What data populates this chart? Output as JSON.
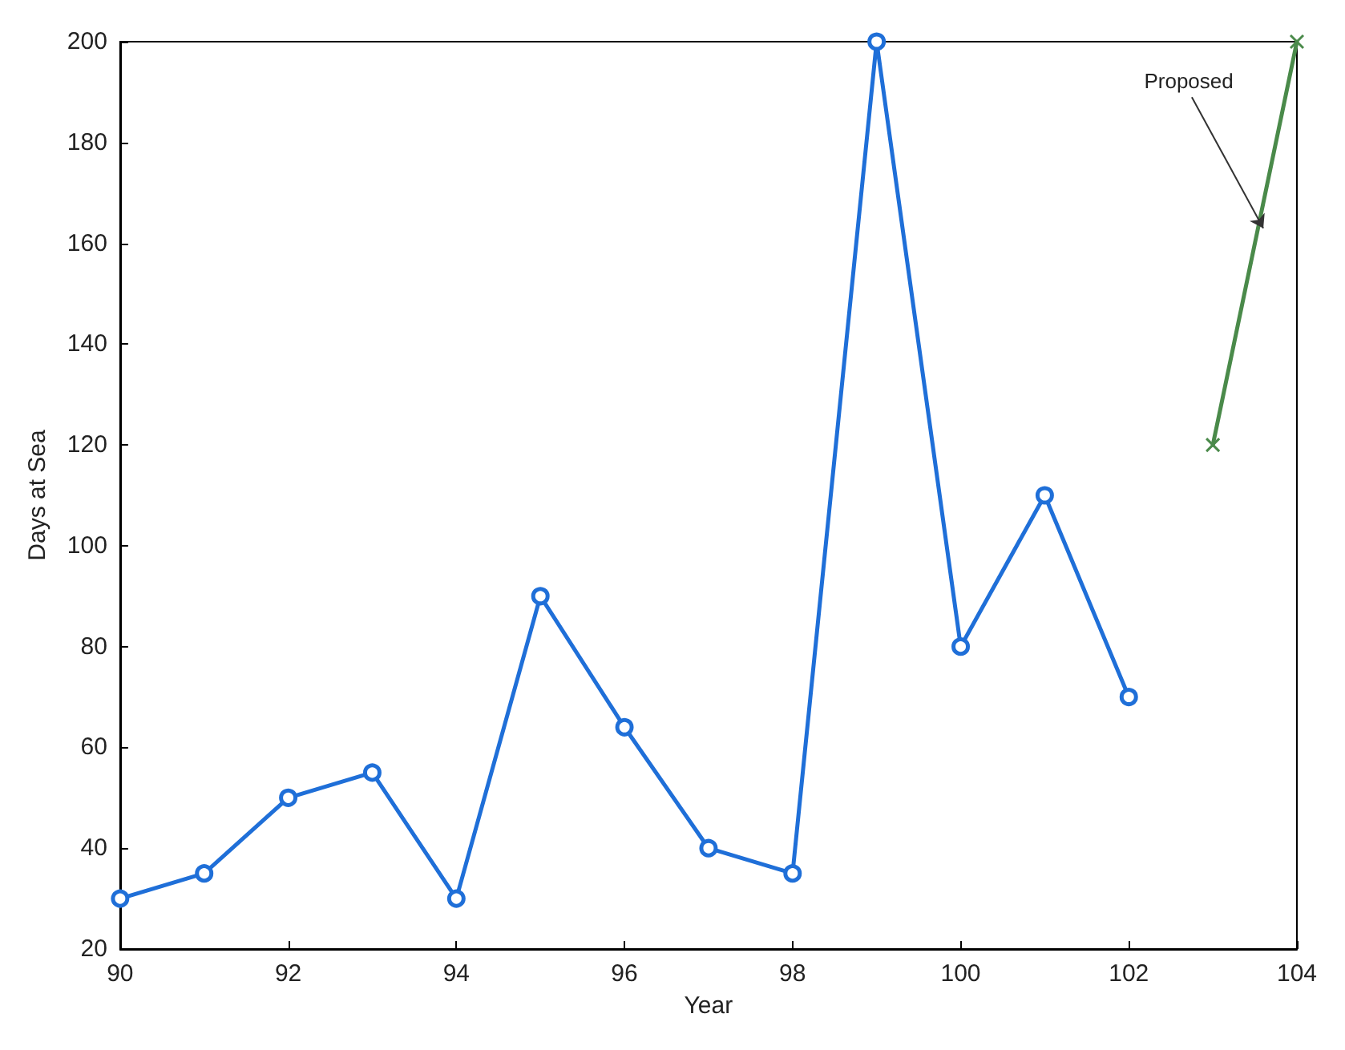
{
  "chart_data": {
    "type": "line",
    "xlabel": "Year",
    "ylabel": "Days at Sea",
    "xlim": [
      90,
      104
    ],
    "xticks": [
      90,
      92,
      94,
      96,
      98,
      100,
      102,
      104
    ],
    "ylim": [
      20,
      200
    ],
    "yticks": [
      20,
      40,
      60,
      80,
      100,
      120,
      140,
      160,
      180,
      200
    ],
    "grid": false,
    "line_style": "solid",
    "series": [
      {
        "color": "#1f6fd8",
        "marker": "circle",
        "x": [
          90,
          91,
          92,
          93,
          94,
          95,
          96,
          97,
          98,
          99,
          100,
          101,
          102
        ],
        "values": [
          30,
          35,
          50,
          55,
          30,
          90,
          64,
          40,
          35,
          200,
          80,
          110,
          70
        ]
      },
      {
        "color": "#4a8a4a",
        "marker": "cross",
        "x": [
          103,
          104
        ],
        "values": [
          120,
          200
        ]
      }
    ],
    "annotations": [
      {
        "text": "Proposed",
        "x": 103.6,
        "y": 163
      }
    ]
  }
}
